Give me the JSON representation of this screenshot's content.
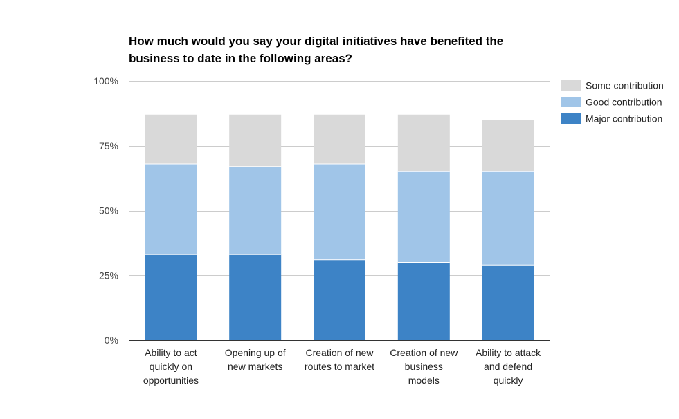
{
  "chart_data": {
    "type": "bar",
    "stacked": true,
    "title": "How much would you say your digital initiatives have benefited the business to date in the following areas?",
    "title_lines": [
      "How much would you say your digital initiatives have benefited the",
      "business to date in the following areas?"
    ],
    "categories": [
      "Ability to act quickly on opportunities",
      "Opening up of new markets",
      "Creation of new routes to market",
      "Creation of new business models",
      "Ability to attack and defend quickly"
    ],
    "category_lines": [
      [
        "Ability to act",
        "quickly on",
        "opportunities"
      ],
      [
        "Opening up of",
        "new markets"
      ],
      [
        "Creation of new",
        "routes to market"
      ],
      [
        "Creation of new",
        "business",
        "models"
      ],
      [
        "Ability to attack",
        "and defend",
        "quickly"
      ]
    ],
    "series": [
      {
        "name": "Major contribution",
        "color": "#3d83c6",
        "values": [
          33,
          33,
          31,
          30,
          29
        ]
      },
      {
        "name": "Good contribution",
        "color": "#a0c5e8",
        "values": [
          35,
          34,
          37,
          35,
          36
        ]
      },
      {
        "name": "Some contribution",
        "color": "#d9d9d9",
        "values": [
          19,
          20,
          19,
          22,
          20
        ]
      }
    ],
    "legend_order": [
      "Some contribution",
      "Good contribution",
      "Major contribution"
    ],
    "ylim": [
      0,
      100
    ],
    "yticks": [
      0,
      25,
      50,
      75,
      100
    ],
    "ytick_labels": [
      "0%",
      "25%",
      "50%",
      "75%",
      "100%"
    ],
    "xlabel": "",
    "ylabel": "",
    "grid": true,
    "legend_position": "right"
  }
}
